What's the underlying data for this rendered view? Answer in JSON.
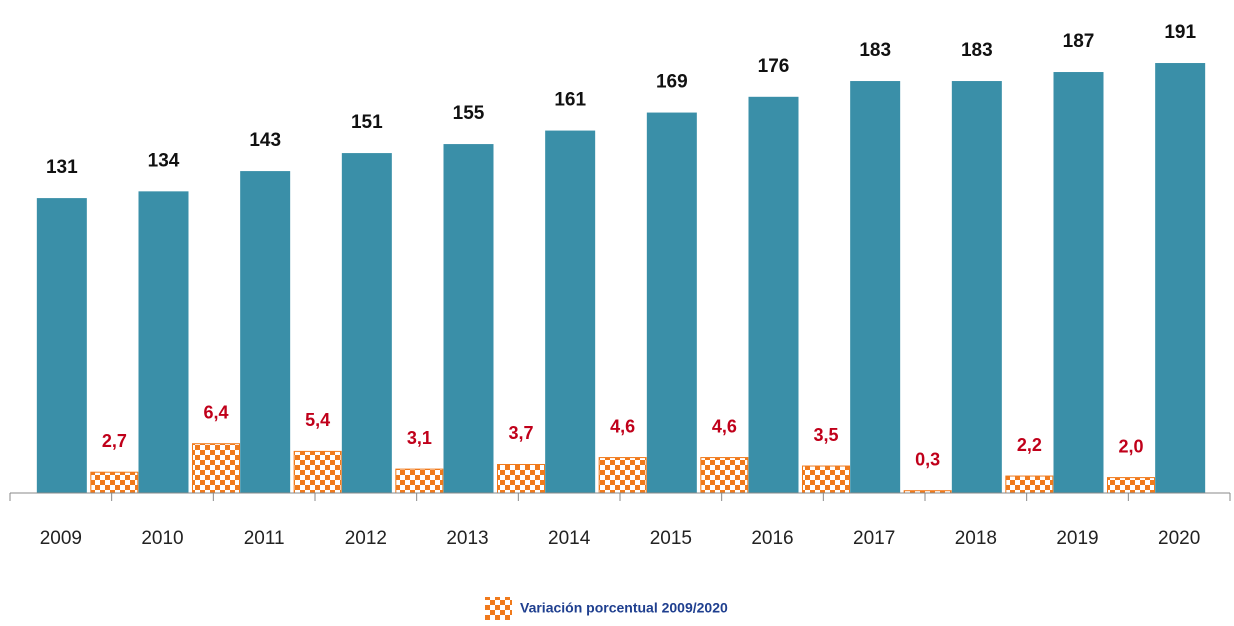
{
  "chart_data": {
    "type": "bar",
    "categories": [
      "2009",
      "2010",
      "2011",
      "2012",
      "2013",
      "2014",
      "2015",
      "2016",
      "2017",
      "2018",
      "2019",
      "2020"
    ],
    "series": [
      {
        "color": "#3a8fa8",
        "values": [
          131,
          134,
          143,
          151,
          155,
          161,
          169,
          176,
          183,
          183,
          187,
          191
        ]
      },
      {
        "name": "Variación porcentual 2009/2020",
        "color": "#f07a1c",
        "axis": "y2",
        "pattern": "checker",
        "values": [
          2.7,
          6.4,
          5.4,
          3.1,
          3.7,
          4.6,
          4.6,
          3.5,
          0.3,
          2.2,
          2.0,
          null
        ],
        "value_labels": [
          "2,7",
          "6,4",
          "5,4",
          "3,1",
          "3,7",
          "4,6",
          "4,6",
          "3,5",
          "0,3",
          "2,2",
          "2,0",
          null
        ]
      }
    ],
    "ylim": [
      0,
      219
    ],
    "y2lim": [
      0,
      64
    ],
    "legend": "bottom"
  }
}
